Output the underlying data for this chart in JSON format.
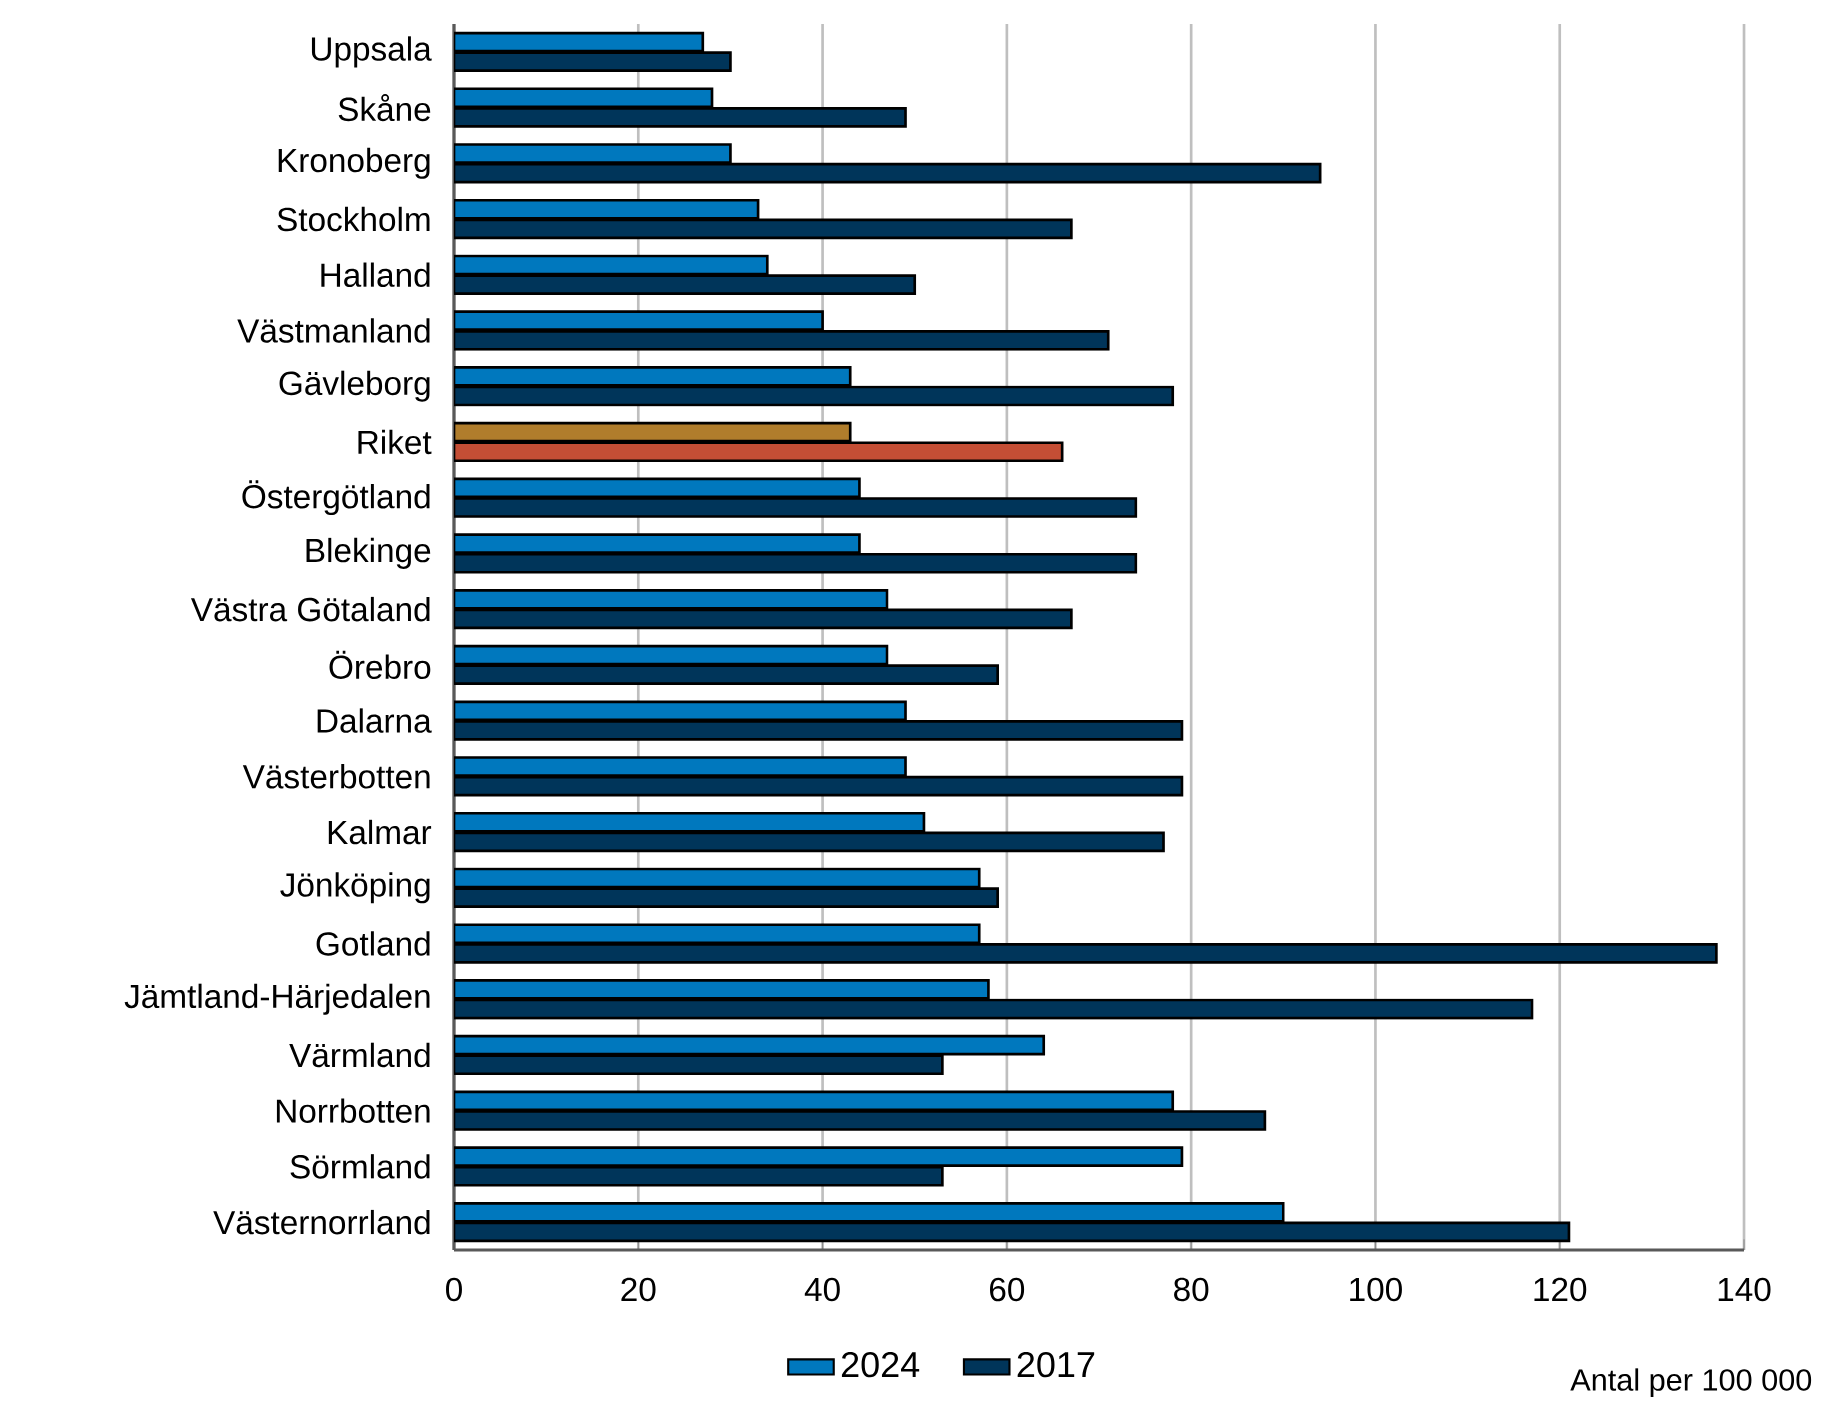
{
  "chart_data": {
    "type": "bar",
    "orientation": "horizontal",
    "xlabel": "Antal per 100 000",
    "categories": [
      "Uppsala",
      "Skåne",
      "Kronoberg",
      "Stockholm",
      "Halland",
      "Västmanland",
      "Gävleborg",
      "Riket",
      "Östergötland",
      "Blekinge",
      "Västra Götaland",
      "Örebro",
      "Dalarna",
      "Västerbotten",
      "Kalmar",
      "Jönköping",
      "Gotland",
      "Jämtland-Härjedalen",
      "Värmland",
      "Norrbotten",
      "Sörmland",
      "Västernorrland"
    ],
    "series": [
      {
        "name": "2024",
        "color": "#0078be",
        "colors": [
          "#0078be",
          "#0078be",
          "#0078be",
          "#0078be",
          "#0078be",
          "#0078be",
          "#0078be",
          "#b07d2c",
          "#0078be",
          "#0078be",
          "#0078be",
          "#0078be",
          "#0078be",
          "#0078be",
          "#0078be",
          "#0078be",
          "#0078be",
          "#0078be",
          "#0078be",
          "#0078be",
          "#0078be",
          "#0078be"
        ],
        "values": [
          27,
          28,
          30,
          33,
          34,
          40,
          43,
          43,
          44,
          44,
          47,
          47,
          49,
          49,
          51,
          57,
          57,
          58,
          64,
          78,
          79,
          90
        ]
      },
      {
        "name": "2017",
        "color": "#00355a",
        "colors": [
          "#00355a",
          "#00355a",
          "#00355a",
          "#00355a",
          "#00355a",
          "#00355a",
          "#00355a",
          "#c44e35",
          "#00355a",
          "#00355a",
          "#00355a",
          "#00355a",
          "#00355a",
          "#00355a",
          "#00355a",
          "#00355a",
          "#00355a",
          "#00355a",
          "#00355a",
          "#00355a",
          "#00355a",
          "#00355a"
        ],
        "values": [
          30,
          49,
          94,
          67,
          50,
          71,
          78,
          66,
          74,
          74,
          67,
          59,
          79,
          79,
          77,
          59,
          137,
          117,
          53,
          88,
          53,
          121
        ]
      }
    ],
    "xlim": [
      0,
      140
    ],
    "xticks": [
      0,
      20,
      40,
      60,
      80,
      100,
      120,
      140
    ],
    "grid": "x",
    "legend": "bottom"
  }
}
